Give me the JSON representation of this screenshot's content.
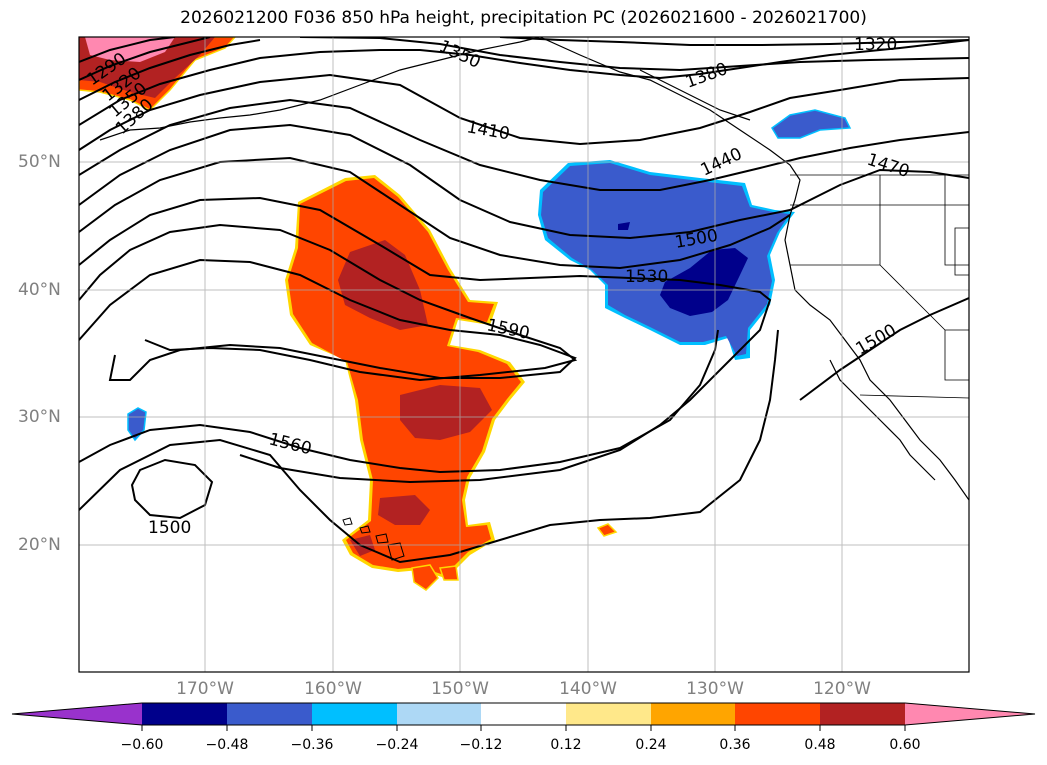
{
  "title": "2026021200 F036 850 hPa height, precipitation PC (2026021600 - 2026021700)",
  "lat_labels": [
    "50°N",
    "40°N",
    "30°N",
    "20°N"
  ],
  "lon_labels": [
    "170°W",
    "160°W",
    "150°W",
    "140°W",
    "130°W",
    "120°W"
  ],
  "contour_labels": [
    "1290",
    "1320",
    "1350",
    "1380",
    "1350",
    "1320",
    "1380",
    "1410",
    "1440",
    "1470",
    "1500",
    "1530",
    "1590",
    "1560",
    "1500",
    "1500"
  ],
  "colorbar": {
    "ticks": [
      "−0.60",
      "−0.48",
      "−0.36",
      "−0.24",
      "−0.12",
      "0.12",
      "0.24",
      "0.36",
      "0.48",
      "0.60"
    ],
    "colors": [
      "#9932cc",
      "#00008b",
      "#3a5bcc",
      "#00bfff",
      "#add8f5",
      "#ffffff",
      "#ffe88a",
      "#ffa500",
      "#ff4500",
      "#b22222",
      "#ff88b0"
    ]
  },
  "colors": {
    "positive": "#ff4500",
    "positive_strong": "#b22222",
    "positive_max": "#ff88b0",
    "negative": "#3a5bcc",
    "negative_strong": "#00008b",
    "negative_weak": "#00bfff",
    "edge": "#ffd700"
  }
}
